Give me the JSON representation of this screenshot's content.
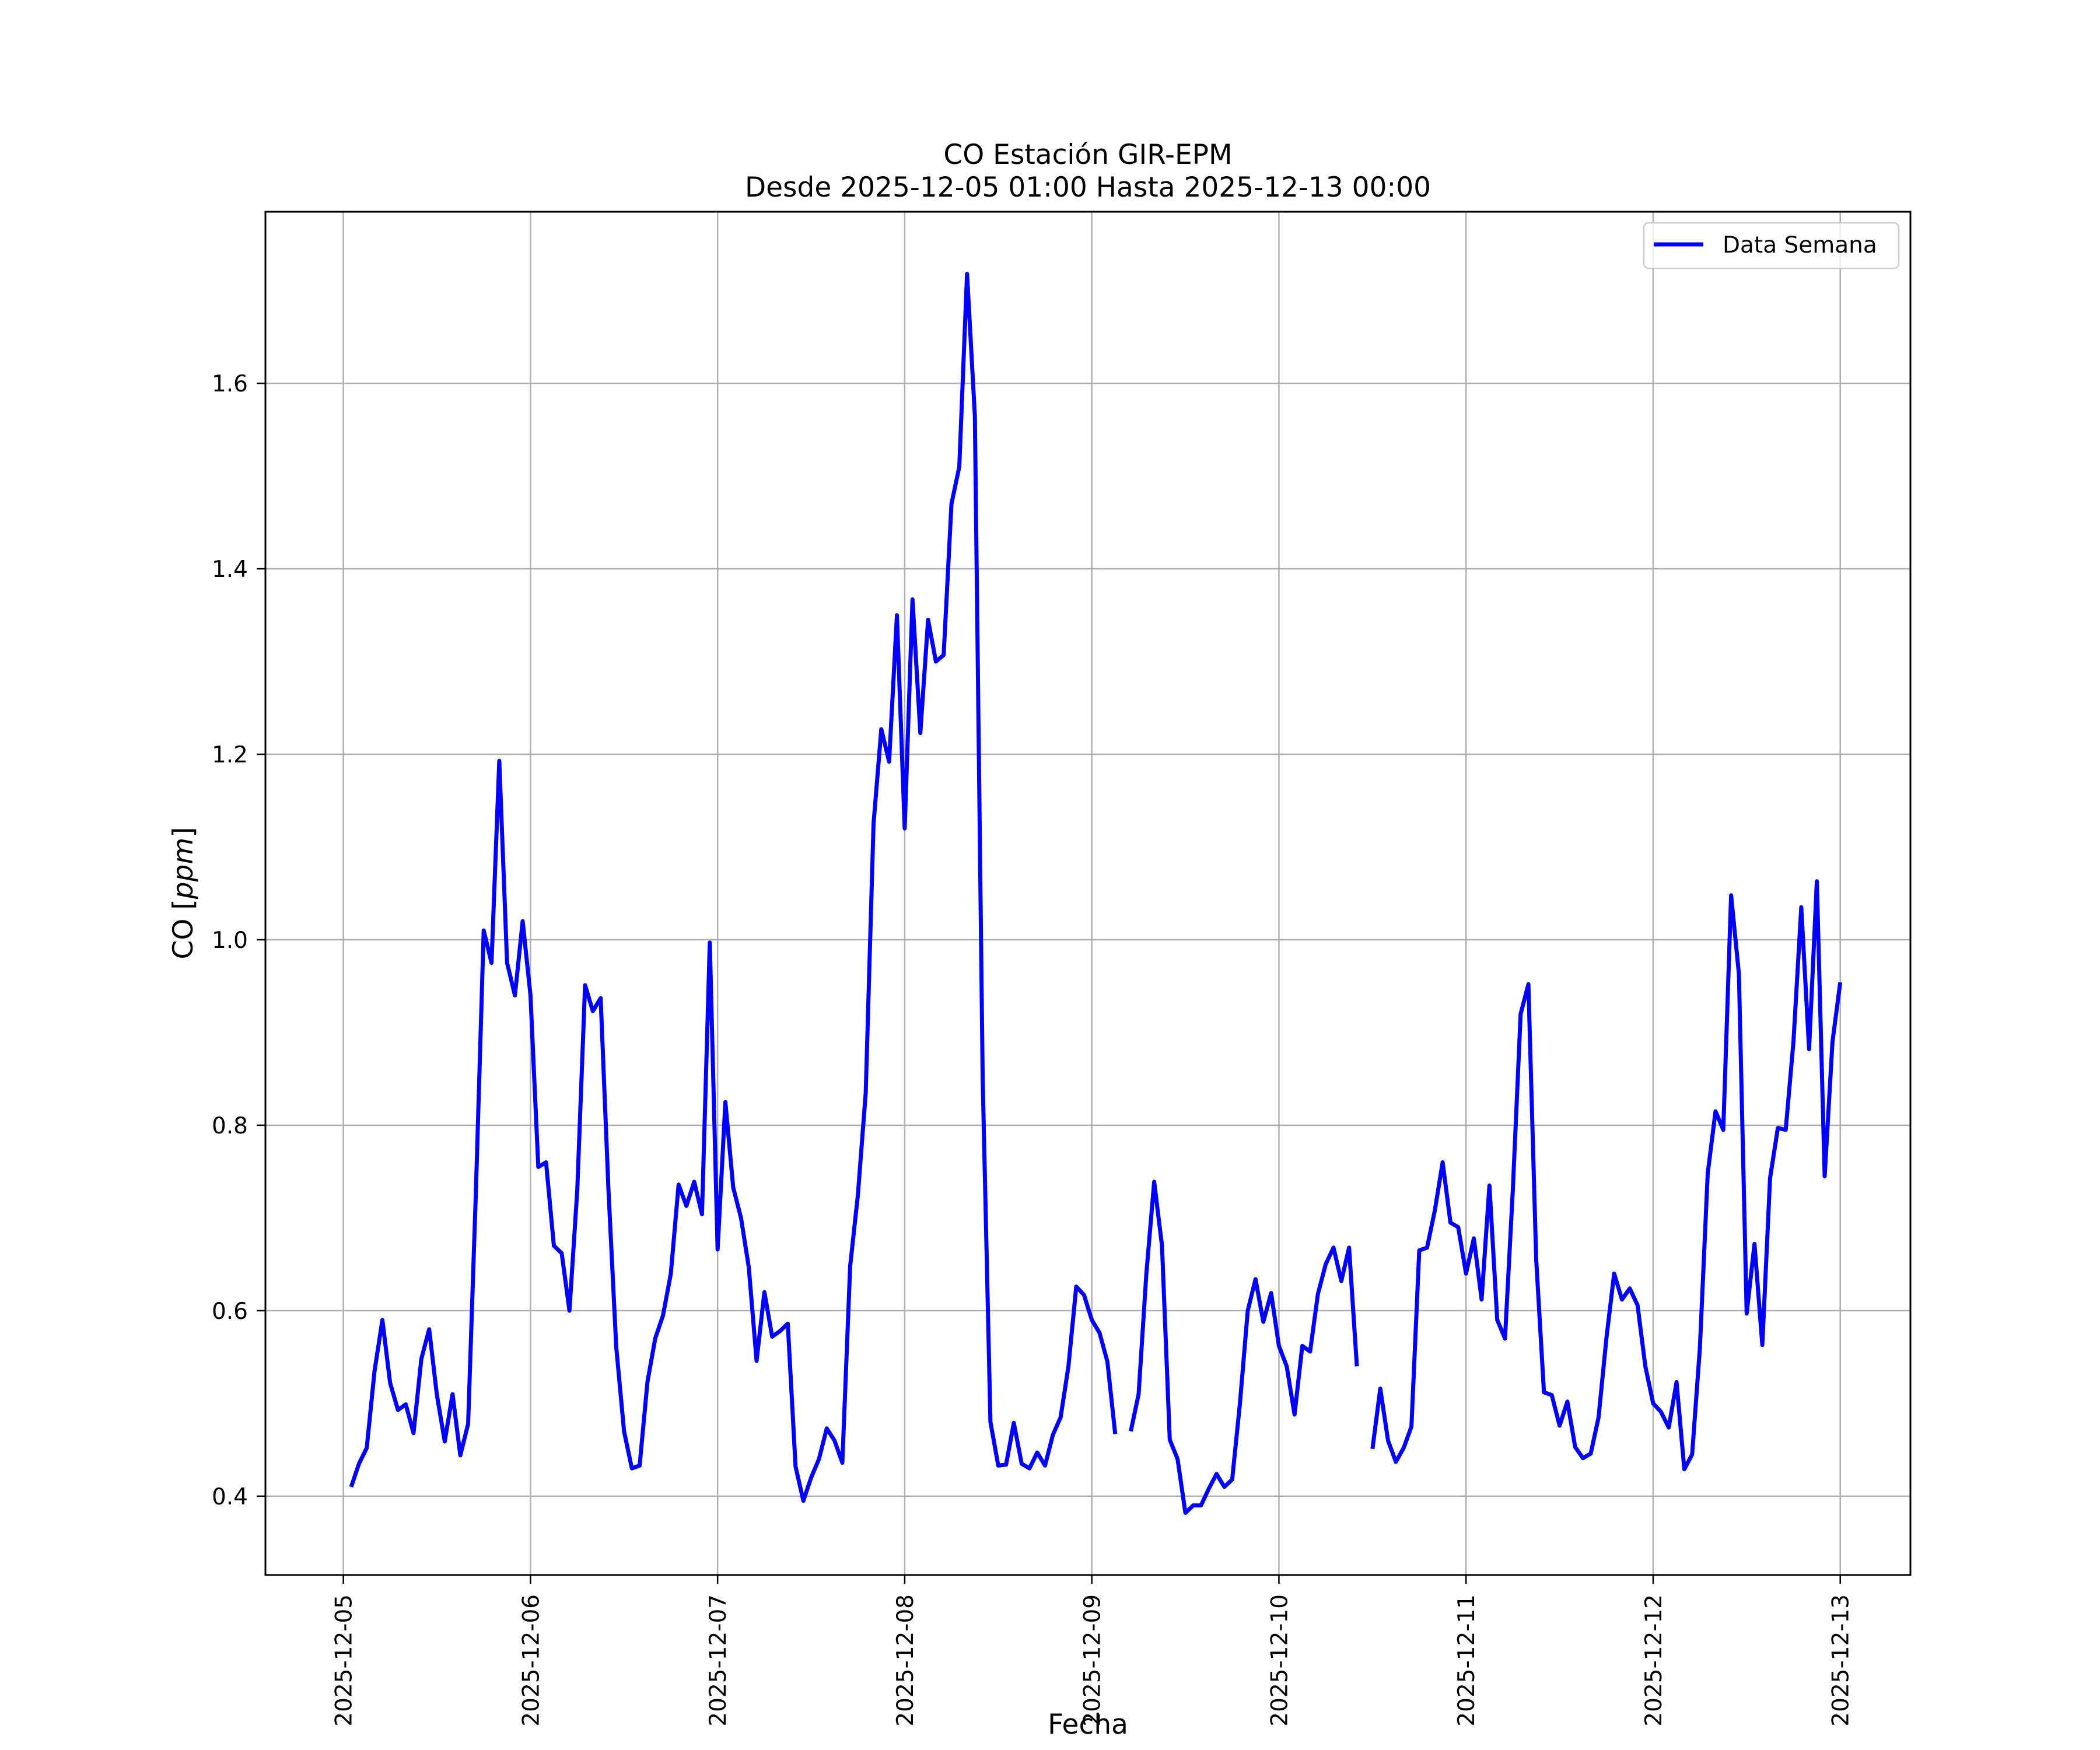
{
  "chart_data": {
    "type": "line",
    "title": "CO Estación GIR-EPM",
    "subtitle": "Desde 2025-12-05 01:00 Hasta 2025-12-13 00:00",
    "xlabel": "Fecha",
    "ylabel_prefix": "CO [",
    "ylabel_unit": "ppm",
    "ylabel_suffix": "]",
    "x_start": "2025-12-05 01:00",
    "x_step_hours": 1,
    "xlim": [
      "2025-12-04 14:00",
      "2025-12-13 09:00"
    ],
    "ylim": [
      0.315,
      1.785
    ],
    "x_ticks": [
      "2025-12-05",
      "2025-12-06",
      "2025-12-07",
      "2025-12-08",
      "2025-12-09",
      "2025-12-10",
      "2025-12-11",
      "2025-12-12",
      "2025-12-13"
    ],
    "y_ticks": [
      0.4,
      0.6,
      0.8,
      1.0,
      1.2,
      1.4,
      1.6
    ],
    "y_tick_labels": [
      "0.4",
      "0.6",
      "0.8",
      "1.0",
      "1.2",
      "1.4",
      "1.6"
    ],
    "grid": true,
    "legend_position": "top-right",
    "series": [
      {
        "name": "Data Semana",
        "color": "#0000ff",
        "values": [
          0.41,
          0.435,
          0.452,
          0.535,
          0.59,
          0.522,
          0.493,
          0.499,
          0.468,
          0.548,
          0.58,
          0.509,
          0.459,
          0.51,
          0.444,
          0.478,
          0.73,
          1.01,
          0.975,
          1.193,
          0.975,
          0.94,
          1.02,
          0.94,
          0.755,
          0.76,
          0.67,
          0.662,
          0.6,
          0.73,
          0.951,
          0.923,
          0.937,
          0.73,
          0.561,
          0.47,
          0.43,
          0.433,
          0.523,
          0.57,
          0.595,
          0.64,
          0.736,
          0.713,
          0.739,
          0.704,
          0.997,
          0.666,
          0.825,
          0.733,
          0.7,
          0.647,
          0.546,
          0.62,
          0.572,
          0.578,
          0.586,
          0.432,
          0.395,
          0.42,
          0.44,
          0.473,
          0.46,
          0.436,
          0.648,
          0.725,
          0.835,
          1.125,
          1.227,
          1.192,
          1.35,
          1.12,
          1.367,
          1.223,
          1.345,
          1.3,
          1.307,
          1.47,
          1.51,
          1.718,
          1.565,
          0.85,
          0.48,
          0.433,
          0.434,
          0.479,
          0.435,
          0.43,
          0.447,
          0.433,
          0.466,
          0.485,
          0.54,
          0.626,
          0.617,
          0.59,
          0.576,
          0.545,
          0.467,
          null,
          0.47,
          0.51,
          0.64,
          0.739,
          0.67,
          0.461,
          0.44,
          0.382,
          0.39,
          0.39,
          0.408,
          0.424,
          0.41,
          0.418,
          0.5,
          0.6,
          0.634,
          0.588,
          0.619,
          0.562,
          0.54,
          0.488,
          0.562,
          0.556,
          0.618,
          0.65,
          0.668,
          0.632,
          0.668,
          0.54,
          null,
          0.451,
          0.516,
          0.46,
          0.437,
          0.452,
          0.475,
          0.665,
          0.668,
          0.708,
          0.76,
          0.695,
          0.69,
          0.64,
          0.678,
          0.612,
          0.735,
          0.59,
          0.57,
          0.73,
          0.92,
          0.952,
          0.655,
          0.512,
          0.509,
          0.476,
          0.502,
          0.453,
          0.441,
          0.446,
          0.485,
          0.57,
          0.64,
          0.612,
          0.624,
          0.606,
          0.54,
          0.5,
          0.491,
          0.474,
          0.523,
          0.429,
          0.445,
          0.56,
          0.748,
          0.815,
          0.795,
          1.048,
          0.963,
          0.597,
          0.672,
          0.563,
          0.743,
          0.797,
          0.795,
          0.89,
          1.035,
          0.882,
          1.063,
          0.745,
          0.89,
          0.954
        ]
      }
    ]
  }
}
